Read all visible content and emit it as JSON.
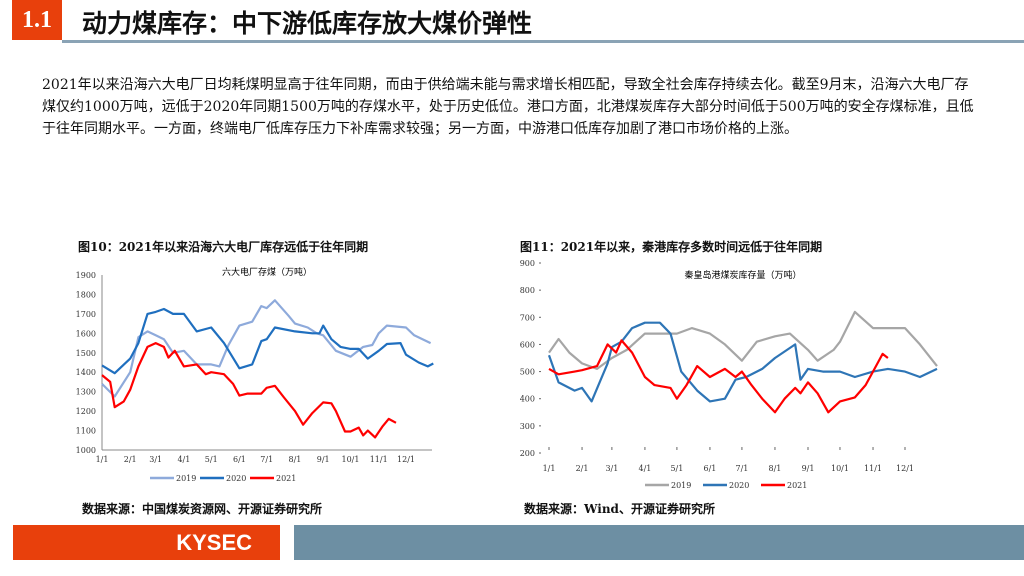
{
  "header": {
    "section": "1.1",
    "title": "动力煤库存：中下游低库存放大煤价弹性"
  },
  "paragraph": "2021年以来沿海六大电厂日均耗煤明显高于往年同期，而由于供给端未能与需求增长相匹配，导致全社会库存持续去化。截至9月末，沿海六大电厂存煤仅约1000万吨，远低于2020年同期1500万吨的存煤水平，处于历史低位。港口方面，北港煤炭库存大部分时间低于500万吨的安全存煤标准，且低于往年同期水平。一方面，终端电厂低库存压力下补库需求较强；另一方面，中游港口低库存加剧了港口市场价格的上涨。",
  "footer": {
    "logo": "KYSEC"
  },
  "colors": {
    "accent": "#e8400c",
    "bar": "#6d8fa3"
  },
  "chart_data": [
    {
      "type": "line",
      "caption": "图10：2021年以来沿海六大电厂库存远低于往年同期",
      "title": "六大电厂存煤（万吨）",
      "source": "数据来源：中国煤炭资源网、开源证券研究所",
      "ylim": [
        1000,
        1900
      ],
      "yticks": [
        "1000",
        "1100",
        "1200",
        "1300",
        "1400",
        "1500",
        "1600",
        "1700",
        "1800",
        "1900"
      ],
      "xticks": [
        "1/1",
        "2/1",
        "3/1",
        "4/1",
        "5/1",
        "6/1",
        "7/1",
        "8/1",
        "9/1",
        "10/1",
        "11/1",
        "12/1"
      ],
      "legend": "bottom",
      "grid": false,
      "series": [
        {
          "name": "2019",
          "color": "#8eaadb",
          "points": [
            [
              "1/1",
              1340
            ],
            [
              "1/15",
              1275
            ],
            [
              "2/1",
              1400
            ],
            [
              "2/10",
              1580
            ],
            [
              "2/20",
              1610
            ],
            [
              "3/1",
              1590
            ],
            [
              "3/10",
              1570
            ],
            [
              "3/20",
              1500
            ],
            [
              "4/1",
              1510
            ],
            [
              "4/15",
              1440
            ],
            [
              "5/1",
              1440
            ],
            [
              "5/10",
              1430
            ],
            [
              "5/20",
              1540
            ],
            [
              "6/1",
              1640
            ],
            [
              "6/15",
              1660
            ],
            [
              "6/25",
              1740
            ],
            [
              "7/1",
              1730
            ],
            [
              "7/10",
              1770
            ],
            [
              "7/25",
              1690
            ],
            [
              "8/1",
              1650
            ],
            [
              "8/15",
              1630
            ],
            [
              "8/25",
              1600
            ],
            [
              "9/1",
              1590
            ],
            [
              "9/15",
              1510
            ],
            [
              "10/1",
              1480
            ],
            [
              "10/15",
              1530
            ],
            [
              "10/25",
              1540
            ],
            [
              "11/1",
              1600
            ],
            [
              "11/10",
              1640
            ],
            [
              "12/1",
              1630
            ],
            [
              "12/10",
              1590
            ],
            [
              "12/28",
              1550
            ]
          ]
        },
        {
          "name": "2020",
          "color": "#1f6fbf",
          "points": [
            [
              "1/1",
              1435
            ],
            [
              "1/15",
              1395
            ],
            [
              "2/1",
              1470
            ],
            [
              "2/10",
              1550
            ],
            [
              "2/20",
              1700
            ],
            [
              "3/1",
              1710
            ],
            [
              "3/10",
              1725
            ],
            [
              "3/20",
              1700
            ],
            [
              "4/1",
              1700
            ],
            [
              "4/15",
              1610
            ],
            [
              "5/1",
              1630
            ],
            [
              "5/15",
              1550
            ],
            [
              "6/1",
              1420
            ],
            [
              "6/15",
              1440
            ],
            [
              "6/25",
              1560
            ],
            [
              "7/1",
              1570
            ],
            [
              "7/10",
              1630
            ],
            [
              "8/1",
              1610
            ],
            [
              "8/20",
              1600
            ],
            [
              "8/28",
              1600
            ],
            [
              "9/1",
              1640
            ],
            [
              "9/10",
              1570
            ],
            [
              "9/20",
              1530
            ],
            [
              "10/1",
              1520
            ],
            [
              "10/10",
              1520
            ],
            [
              "10/20",
              1470
            ],
            [
              "11/1",
              1510
            ],
            [
              "11/10",
              1545
            ],
            [
              "11/25",
              1550
            ],
            [
              "12/1",
              1490
            ],
            [
              "12/15",
              1450
            ],
            [
              "12/25",
              1430
            ],
            [
              "12/31",
              1445
            ]
          ]
        },
        {
          "name": "2021",
          "color": "#ff0000",
          "points": [
            [
              "1/1",
              1385
            ],
            [
              "1/10",
              1350
            ],
            [
              "1/15",
              1220
            ],
            [
              "1/25",
              1250
            ],
            [
              "2/1",
              1310
            ],
            [
              "2/10",
              1430
            ],
            [
              "2/20",
              1530
            ],
            [
              "3/1",
              1550
            ],
            [
              "3/10",
              1530
            ],
            [
              "3/15",
              1475
            ],
            [
              "3/22",
              1510
            ],
            [
              "4/1",
              1430
            ],
            [
              "4/15",
              1440
            ],
            [
              "4/25",
              1390
            ],
            [
              "5/1",
              1400
            ],
            [
              "5/15",
              1390
            ],
            [
              "5/25",
              1340
            ],
            [
              "6/1",
              1280
            ],
            [
              "6/10",
              1290
            ],
            [
              "6/25",
              1290
            ],
            [
              "7/1",
              1320
            ],
            [
              "7/10",
              1330
            ],
            [
              "7/20",
              1270
            ],
            [
              "8/1",
              1200
            ],
            [
              "8/10",
              1130
            ],
            [
              "8/20",
              1190
            ],
            [
              "9/1",
              1245
            ],
            [
              "9/10",
              1240
            ],
            [
              "9/15",
              1200
            ],
            [
              "9/25",
              1095
            ],
            [
              "10/1",
              1095
            ],
            [
              "10/10",
              1115
            ],
            [
              "10/15",
              1075
            ],
            [
              "10/20",
              1100
            ],
            [
              "10/28",
              1065
            ],
            [
              "11/5",
              1120
            ],
            [
              "11/12",
              1160
            ],
            [
              "11/20",
              1140
            ]
          ]
        }
      ]
    },
    {
      "type": "line",
      "caption": "图11：2021年以来，秦港库存多数时间远低于往年同期",
      "title": "秦皇岛港煤炭库存量（万吨）",
      "source": "数据来源：Wind、开源证券研究所",
      "ylim": [
        200,
        900
      ],
      "yticks": [
        "200",
        "300",
        "400",
        "500",
        "600",
        "700",
        "800",
        "900"
      ],
      "xticks": [
        "1/1",
        "2/1",
        "3/1",
        "4/1",
        "5/1",
        "6/1",
        "7/1",
        "8/1",
        "9/1",
        "10/1",
        "11/1",
        "12/1"
      ],
      "legend": "bottom",
      "grid": false,
      "series": [
        {
          "name": "2019",
          "color": "#a6a6a6",
          "points": [
            [
              "1/1",
              570
            ],
            [
              "1/10",
              620
            ],
            [
              "1/20",
              570
            ],
            [
              "2/1",
              530
            ],
            [
              "2/15",
              510
            ],
            [
              "3/1",
              550
            ],
            [
              "3/15",
              580
            ],
            [
              "4/1",
              640
            ],
            [
              "4/20",
              640
            ],
            [
              "5/1",
              640
            ],
            [
              "5/15",
              660
            ],
            [
              "6/1",
              640
            ],
            [
              "6/15",
              600
            ],
            [
              "7/1",
              540
            ],
            [
              "7/15",
              610
            ],
            [
              "8/1",
              630
            ],
            [
              "8/15",
              640
            ],
            [
              "9/1",
              580
            ],
            [
              "9/10",
              540
            ],
            [
              "9/25",
              580
            ],
            [
              "10/1",
              610
            ],
            [
              "10/15",
              720
            ],
            [
              "11/1",
              660
            ],
            [
              "11/15",
              660
            ],
            [
              "12/1",
              660
            ],
            [
              "12/15",
              600
            ],
            [
              "12/31",
              520
            ]
          ]
        },
        {
          "name": "2020",
          "color": "#2e75b6",
          "points": [
            [
              "1/1",
              560
            ],
            [
              "1/10",
              460
            ],
            [
              "1/25",
              430
            ],
            [
              "2/1",
              440
            ],
            [
              "2/10",
              390
            ],
            [
              "2/25",
              530
            ],
            [
              "3/1",
              590
            ],
            [
              "3/10",
              610
            ],
            [
              "3/20",
              660
            ],
            [
              "4/1",
              680
            ],
            [
              "4/15",
              680
            ],
            [
              "4/25",
              640
            ],
            [
              "5/5",
              500
            ],
            [
              "5/20",
              430
            ],
            [
              "6/1",
              390
            ],
            [
              "6/15",
              400
            ],
            [
              "6/25",
              470
            ],
            [
              "7/5",
              480
            ],
            [
              "7/20",
              510
            ],
            [
              "8/1",
              550
            ],
            [
              "8/20",
              600
            ],
            [
              "8/25",
              470
            ],
            [
              "9/1",
              510
            ],
            [
              "9/15",
              500
            ],
            [
              "10/1",
              500
            ],
            [
              "10/15",
              480
            ],
            [
              "11/1",
              500
            ],
            [
              "11/15",
              510
            ],
            [
              "12/1",
              500
            ],
            [
              "12/15",
              480
            ],
            [
              "12/31",
              510
            ]
          ]
        },
        {
          "name": "2021",
          "color": "#ff0000",
          "points": [
            [
              "1/1",
              510
            ],
            [
              "1/10",
              490
            ],
            [
              "1/25",
              500
            ],
            [
              "2/1",
              505
            ],
            [
              "2/15",
              520
            ],
            [
              "2/25",
              600
            ],
            [
              "3/5",
              570
            ],
            [
              "3/10",
              615
            ],
            [
              "3/20",
              570
            ],
            [
              "4/1",
              480
            ],
            [
              "4/10",
              450
            ],
            [
              "4/25",
              440
            ],
            [
              "5/1",
              400
            ],
            [
              "5/10",
              450
            ],
            [
              "5/20",
              520
            ],
            [
              "6/1",
              480
            ],
            [
              "6/15",
              510
            ],
            [
              "6/25",
              480
            ],
            [
              "7/1",
              500
            ],
            [
              "7/10",
              450
            ],
            [
              "7/20",
              400
            ],
            [
              "8/1",
              350
            ],
            [
              "8/10",
              400
            ],
            [
              "8/20",
              440
            ],
            [
              "8/25",
              420
            ],
            [
              "9/1",
              460
            ],
            [
              "9/10",
              420
            ],
            [
              "9/20",
              350
            ],
            [
              "10/1",
              390
            ],
            [
              "10/15",
              405
            ],
            [
              "10/25",
              450
            ],
            [
              "11/1",
              500
            ],
            [
              "11/10",
              565
            ],
            [
              "11/15",
              550
            ]
          ]
        }
      ]
    }
  ]
}
